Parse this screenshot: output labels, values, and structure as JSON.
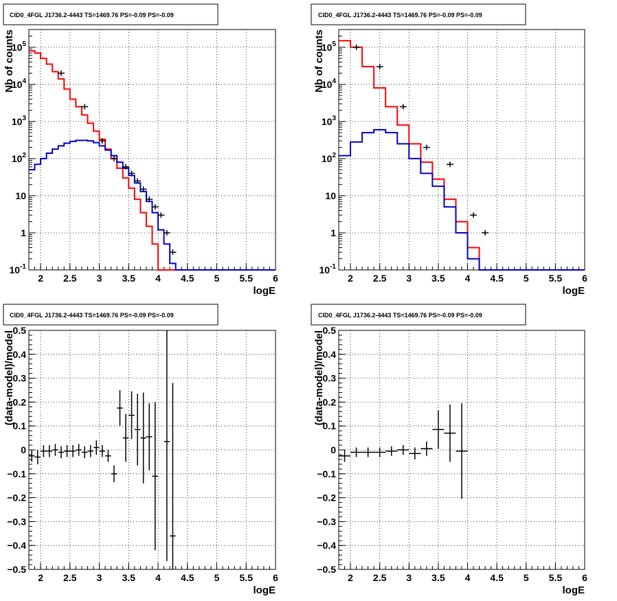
{
  "chart_data": [
    {
      "type": "line",
      "title": "CID0_4FGL J1736.2-4443 TS=1469.76 PS=-0.09 PS=-0.09",
      "xlabel": "logE",
      "ylabel": "Nb of counts",
      "scale_y": "log",
      "xlim": [
        1.8,
        6.0
      ],
      "ylim": [
        0.1,
        300000
      ],
      "xticks": [
        "2",
        "2.5",
        "3",
        "3.5",
        "4",
        "4.5",
        "5",
        "5.5",
        "6"
      ],
      "yticks": [
        "10^-1",
        "1",
        "10",
        "10^2",
        "10^3",
        "10^4",
        "10^5"
      ],
      "grid": true,
      "bin_edges": [
        1.8,
        1.9,
        2.0,
        2.1,
        2.2,
        2.3,
        2.4,
        2.5,
        2.6,
        2.7,
        2.8,
        2.9,
        3.0,
        3.1,
        3.2,
        3.3,
        3.4,
        3.5,
        3.6,
        3.7,
        3.8,
        3.9,
        4.0,
        4.1,
        4.2,
        4.3,
        4.4,
        4.5,
        4.6,
        4.7,
        4.8,
        4.9,
        5.0,
        5.1,
        5.2,
        5.3,
        5.4,
        5.5,
        5.6,
        5.7,
        5.8,
        5.9,
        6.0
      ],
      "series": [
        {
          "color": "#ff0000",
          "values": [
            80000,
            70000,
            50000,
            35000,
            22000,
            14000,
            7500,
            4000,
            2500,
            1500,
            900,
            550,
            330,
            180,
            100,
            55,
            30,
            16,
            8,
            3.5,
            1.5,
            0.5,
            0.1,
            0.1,
            0.1,
            0.1,
            0.1,
            0.1,
            0.1,
            0.1,
            0.1,
            0.1,
            0.1,
            0.1,
            0.1,
            0.1,
            0.1,
            0.1,
            0.1,
            0.1,
            0.1,
            0.1
          ]
        },
        {
          "color": "#0000cc",
          "values": [
            50,
            70,
            100,
            140,
            180,
            220,
            260,
            290,
            310,
            310,
            300,
            270,
            220,
            170,
            120,
            80,
            55,
            35,
            22,
            13,
            7,
            3.5,
            1.2,
            0.5,
            0.15,
            0.1,
            0.1,
            0.1,
            0.1,
            0.1,
            0.1,
            0.1,
            0.1,
            0.1,
            0.1,
            0.1,
            0.1,
            0.1,
            0.1,
            0.1,
            0.1,
            0.1
          ]
        }
      ],
      "data_points": {
        "color": "#000000",
        "x": [
          2.35,
          2.75,
          3.05,
          3.25,
          3.45,
          3.55,
          3.65,
          3.75,
          3.85,
          3.95,
          4.05,
          4.15,
          4.25
        ],
        "y": [
          20000,
          2500,
          300,
          100,
          60,
          40,
          25,
          15,
          8,
          5,
          3,
          1,
          0.3
        ]
      }
    },
    {
      "type": "line",
      "title": "CID0_4FGL J1736.2-4443 TS=1469.76 PS=-0.09 PS=-0.09",
      "xlabel": "logE",
      "ylabel": "Nb of counts",
      "scale_y": "log",
      "xlim": [
        1.8,
        6.0
      ],
      "ylim": [
        0.1,
        300000
      ],
      "xticks": [
        "2",
        "2.5",
        "3",
        "3.5",
        "4",
        "4.5",
        "5",
        "5.5",
        "6"
      ],
      "yticks": [
        "10^-1",
        "1",
        "10",
        "10^2",
        "10^3",
        "10^4",
        "10^5"
      ],
      "grid": true,
      "bin_edges": [
        1.8,
        2.0,
        2.2,
        2.4,
        2.6,
        2.8,
        3.0,
        3.2,
        3.4,
        3.6,
        3.8,
        4.0,
        4.2,
        4.4,
        4.6,
        4.8,
        5.0,
        5.2,
        5.4,
        5.6,
        5.8,
        6.0
      ],
      "series": [
        {
          "color": "#ff0000",
          "values": [
            150000,
            100000,
            30000,
            8000,
            2500,
            800,
            250,
            80,
            28,
            8,
            2,
            0.4,
            0.1,
            0.1,
            0.1,
            0.1,
            0.1,
            0.1,
            0.1,
            0.1,
            0.1
          ]
        },
        {
          "color": "#0000cc",
          "values": [
            120,
            280,
            500,
            600,
            500,
            250,
            100,
            40,
            18,
            5,
            1,
            0.2,
            0.1,
            0.1,
            0.1,
            0.1,
            0.1,
            0.1,
            0.1,
            0.1,
            0.1
          ]
        }
      ],
      "data_points": {
        "color": "#000000",
        "x": [
          2.1,
          2.5,
          2.9,
          3.3,
          3.7,
          4.1,
          4.3
        ],
        "y": [
          100000,
          30000,
          2500,
          200,
          70,
          3,
          1
        ]
      }
    },
    {
      "type": "scatter",
      "title": "CID0_4FGL J1736.2-4443 TS=1469.76 PS=-0.09 PS=-0.09",
      "xlabel": "logE",
      "ylabel": "(data-model)/model",
      "xlim": [
        1.8,
        6.0
      ],
      "ylim": [
        -0.5,
        0.5
      ],
      "xticks": [
        "2",
        "2.5",
        "3",
        "3.5",
        "4",
        "4.5",
        "5",
        "5.5",
        "6"
      ],
      "yticks": [
        "−0.5",
        "−0.4",
        "−0.3",
        "−0.2",
        "−0.1",
        "0",
        "0.1",
        "0.2",
        "0.3",
        "0.4",
        "0.5"
      ],
      "grid": true,
      "points": [
        {
          "x": 1.85,
          "y": -0.025,
          "err": 0.025,
          "xerr": 0.05
        },
        {
          "x": 1.95,
          "y": -0.03,
          "err": 0.03,
          "xerr": 0.05
        },
        {
          "x": 2.05,
          "y": -0.005,
          "err": 0.025,
          "xerr": 0.05
        },
        {
          "x": 2.15,
          "y": -0.005,
          "err": 0.025,
          "xerr": 0.05
        },
        {
          "x": 2.25,
          "y": 0.0,
          "err": 0.025,
          "xerr": 0.05
        },
        {
          "x": 2.35,
          "y": -0.01,
          "err": 0.025,
          "xerr": 0.05
        },
        {
          "x": 2.45,
          "y": -0.005,
          "err": 0.025,
          "xerr": 0.05
        },
        {
          "x": 2.55,
          "y": -0.005,
          "err": 0.025,
          "xerr": 0.05
        },
        {
          "x": 2.65,
          "y": 0.0,
          "err": 0.025,
          "xerr": 0.05
        },
        {
          "x": 2.75,
          "y": -0.01,
          "err": 0.025,
          "xerr": 0.05
        },
        {
          "x": 2.85,
          "y": -0.005,
          "err": 0.025,
          "xerr": 0.05
        },
        {
          "x": 2.95,
          "y": 0.01,
          "err": 0.03,
          "xerr": 0.05
        },
        {
          "x": 3.05,
          "y": -0.005,
          "err": 0.025,
          "xerr": 0.05
        },
        {
          "x": 3.15,
          "y": -0.025,
          "err": 0.025,
          "xerr": 0.05
        },
        {
          "x": 3.25,
          "y": -0.1,
          "err": 0.035,
          "xerr": 0.05
        },
        {
          "x": 3.35,
          "y": 0.175,
          "err": 0.075,
          "xerr": 0.05
        },
        {
          "x": 3.45,
          "y": 0.05,
          "err": 0.1,
          "xerr": 0.05
        },
        {
          "x": 3.55,
          "y": 0.145,
          "err": 0.1,
          "xerr": 0.05
        },
        {
          "x": 3.65,
          "y": 0.085,
          "err": 0.15,
          "xerr": 0.05
        },
        {
          "x": 3.75,
          "y": 0.05,
          "err": 0.19,
          "xerr": 0.05
        },
        {
          "x": 3.85,
          "y": 0.055,
          "err": 0.14,
          "xerr": 0.05
        },
        {
          "x": 3.95,
          "y": -0.11,
          "err": 0.31,
          "xerr": 0.05
        },
        {
          "x": 4.15,
          "y": 0.035,
          "err": 0.5,
          "xerr": 0.05
        },
        {
          "x": 4.25,
          "y": -0.36,
          "err": 0.64,
          "xerr": 0.05
        }
      ]
    },
    {
      "type": "scatter",
      "title": "CID0_4FGL J1736.2-4443 TS=1469.76 PS=-0.09 PS=-0.09",
      "xlabel": "logE",
      "ylabel": "(data-model)/model",
      "xlim": [
        1.8,
        6.0
      ],
      "ylim": [
        -0.5,
        0.5
      ],
      "xticks": [
        "2",
        "2.5",
        "3",
        "3.5",
        "4",
        "4.5",
        "5",
        "5.5",
        "6"
      ],
      "yticks": [
        "−0.5",
        "−0.4",
        "−0.3",
        "−0.2",
        "−0.1",
        "0",
        "0.1",
        "0.2",
        "0.3",
        "0.4",
        "0.5"
      ],
      "grid": true,
      "points": [
        {
          "x": 1.9,
          "y": -0.025,
          "err": 0.025,
          "xerr": 0.1
        },
        {
          "x": 2.1,
          "y": -0.01,
          "err": 0.02,
          "xerr": 0.1
        },
        {
          "x": 2.3,
          "y": -0.01,
          "err": 0.02,
          "xerr": 0.1
        },
        {
          "x": 2.5,
          "y": -0.01,
          "err": 0.02,
          "xerr": 0.1
        },
        {
          "x": 2.7,
          "y": -0.005,
          "err": 0.02,
          "xerr": 0.1
        },
        {
          "x": 2.9,
          "y": 0.0,
          "err": 0.02,
          "xerr": 0.1
        },
        {
          "x": 3.1,
          "y": -0.015,
          "err": 0.025,
          "xerr": 0.1
        },
        {
          "x": 3.3,
          "y": 0.005,
          "err": 0.03,
          "xerr": 0.1
        },
        {
          "x": 3.5,
          "y": 0.085,
          "err": 0.08,
          "xerr": 0.1
        },
        {
          "x": 3.7,
          "y": 0.07,
          "err": 0.12,
          "xerr": 0.1
        },
        {
          "x": 3.9,
          "y": -0.005,
          "err": 0.2,
          "xerr": 0.1
        }
      ]
    }
  ]
}
